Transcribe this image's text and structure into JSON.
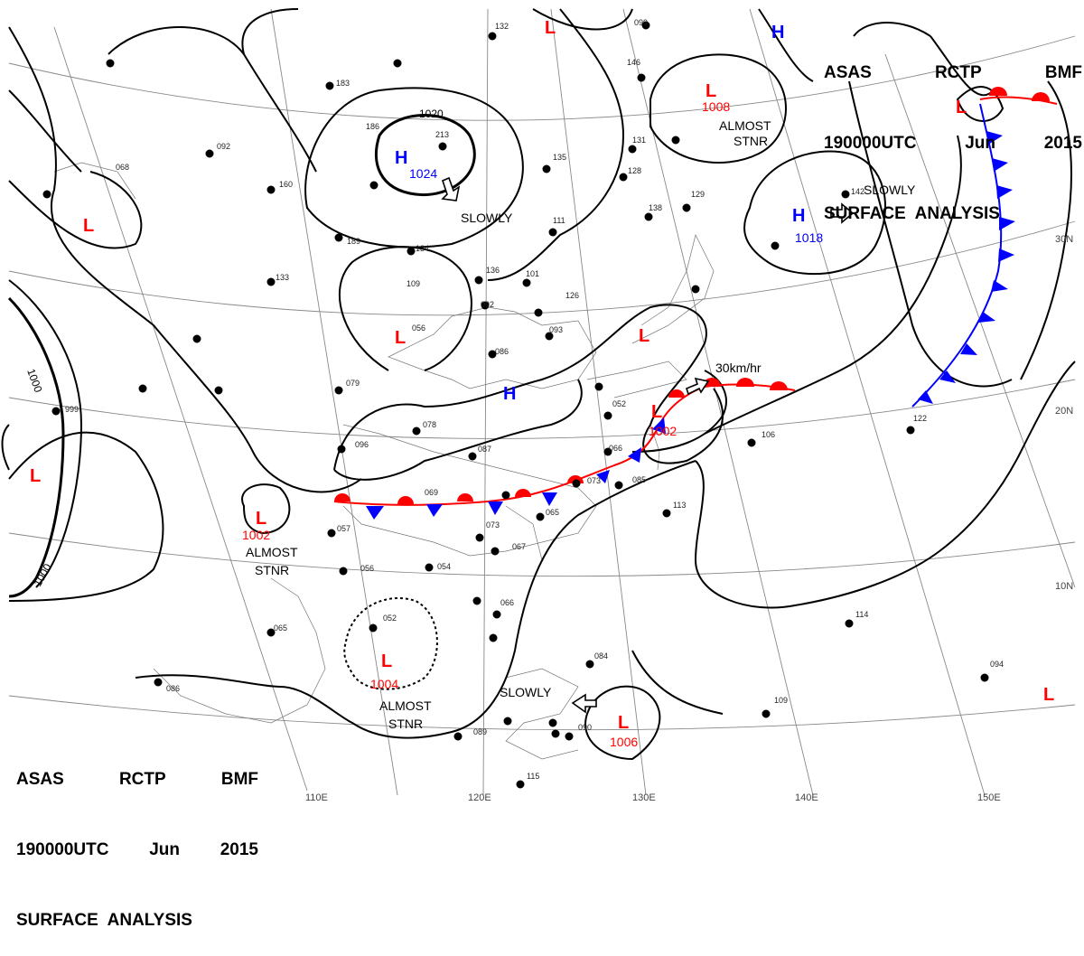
{
  "header": {
    "line1": [
      "ASAS",
      "RCTP",
      "BMF"
    ],
    "line2": [
      "190000UTC",
      "Jun",
      "2015"
    ],
    "line3": "SURFACE  ANALYSIS"
  },
  "colors": {
    "high": "#0000ff",
    "low": "#ff0000",
    "front_warm": "#ff0000",
    "front_cold": "#0000ff",
    "isobar": "#000000",
    "grid": "#888888"
  },
  "longitude_labels": [
    "110E",
    "120E",
    "130E",
    "140E",
    "150E"
  ],
  "latitude_labels": [
    "30N",
    "20N",
    "10N"
  ],
  "pressure_centers": [
    {
      "type": "H",
      "value": "1024"
    },
    {
      "type": "H",
      "value": "1018"
    },
    {
      "type": "H",
      "value": ""
    },
    {
      "type": "H",
      "value": ""
    },
    {
      "type": "L",
      "value": "1008"
    },
    {
      "type": "L",
      "value": "1002"
    },
    {
      "type": "L",
      "value": "1002"
    },
    {
      "type": "L",
      "value": "1004"
    },
    {
      "type": "L",
      "value": "1006"
    },
    {
      "type": "L",
      "value": ""
    },
    {
      "type": "L",
      "value": ""
    },
    {
      "type": "L",
      "value": ""
    },
    {
      "type": "L",
      "value": ""
    },
    {
      "type": "L",
      "value": ""
    },
    {
      "type": "L",
      "value": ""
    }
  ],
  "movement_labels": [
    "SLOWLY",
    "SLOWLY",
    "SLOWLY",
    "30km/hr",
    "ALMOST\nSTNR",
    "ALMOST\nSTNR",
    "ALMOST\nSTNR"
  ],
  "isobar_labels": [
    "1020",
    "1000",
    "1000"
  ],
  "station_values": [
    "213",
    "092",
    "068",
    "183",
    "186",
    "160",
    "189",
    "134",
    "133",
    "109",
    "092",
    "056",
    "079",
    "078",
    "096",
    "087",
    "066",
    "052",
    "073",
    "085",
    "069",
    "057",
    "056",
    "054",
    "073",
    "065",
    "067",
    "066",
    "052",
    "065",
    "086",
    "089",
    "115",
    "084",
    "090",
    "109",
    "113",
    "106",
    "122",
    "114",
    "094",
    "142",
    "129",
    "138",
    "128",
    "131",
    "135",
    "111",
    "101",
    "136",
    "086",
    "093",
    "126",
    "132",
    "146",
    "099",
    "999"
  ]
}
